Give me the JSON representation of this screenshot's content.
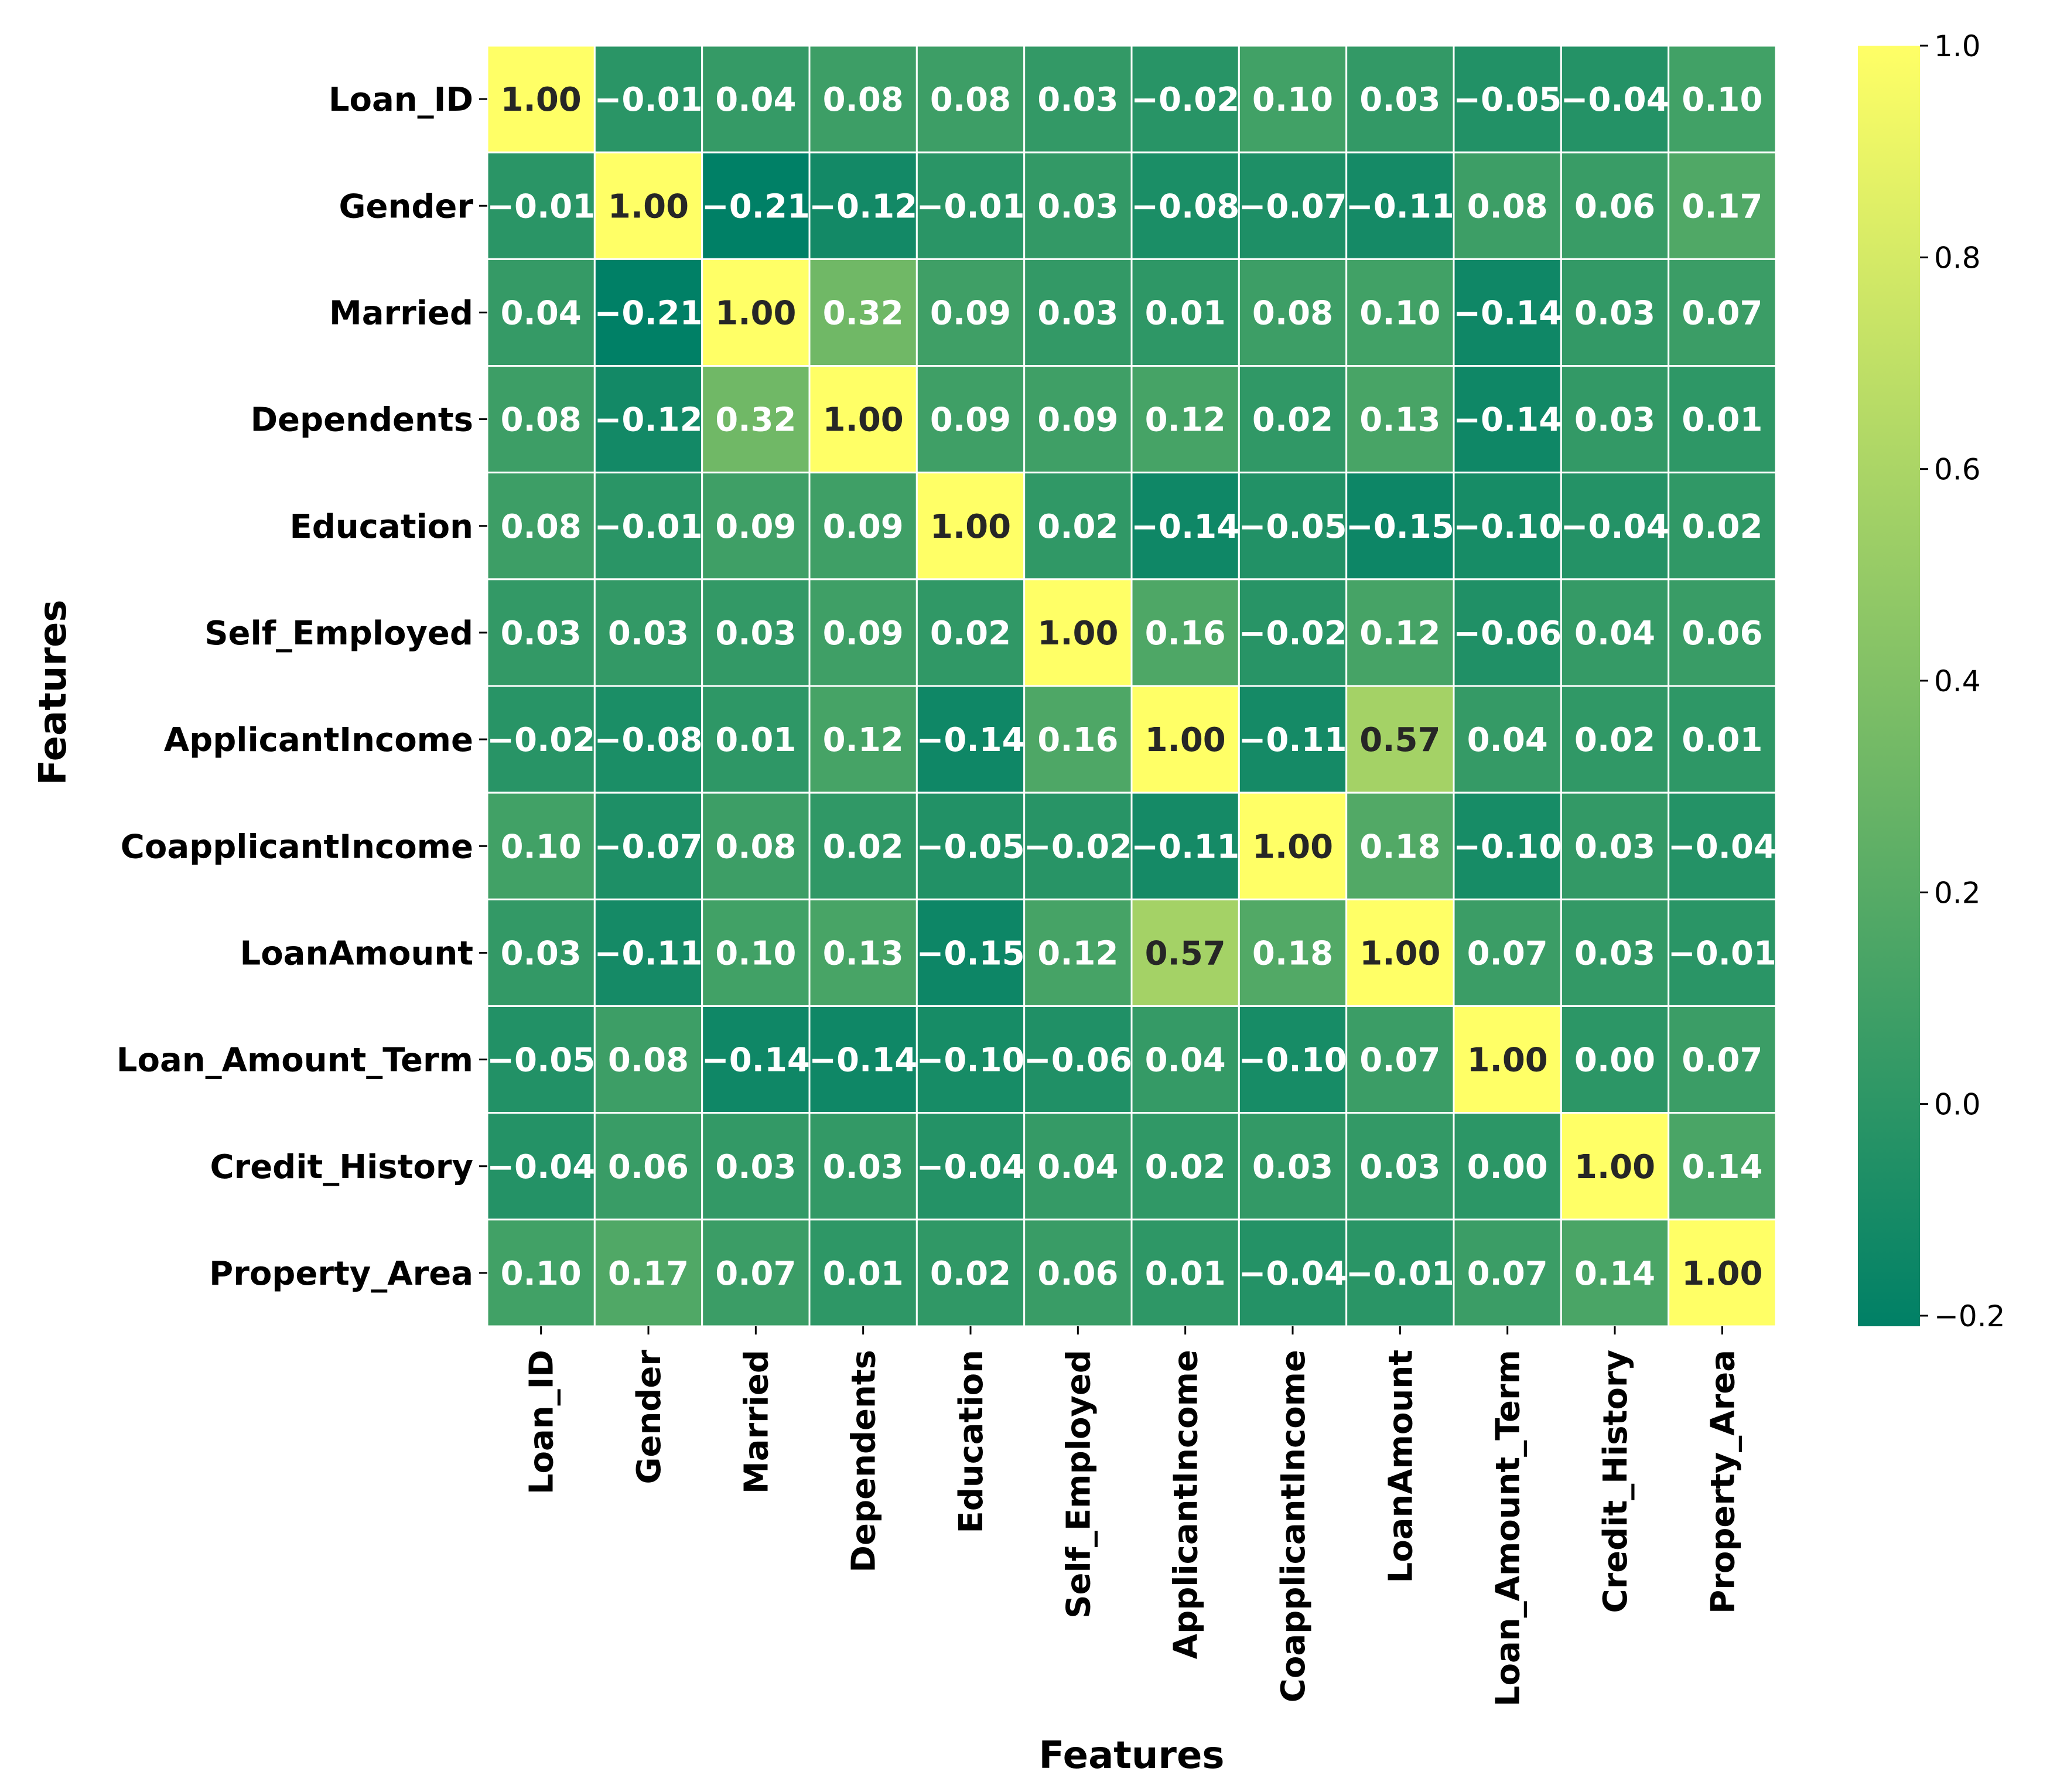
{
  "chart_data": {
    "type": "heatmap",
    "title": "",
    "xlabel": "Features",
    "ylabel": "Features",
    "rows": [
      "Loan_ID",
      "Gender",
      "Married",
      "Dependents",
      "Education",
      "Self_Employed",
      "ApplicantIncome",
      "CoapplicantIncome",
      "LoanAmount",
      "Loan_Amount_Term",
      "Credit_History",
      "Property_Area"
    ],
    "columns": [
      "Loan_ID",
      "Gender",
      "Married",
      "Dependents",
      "Education",
      "Self_Employed",
      "ApplicantIncome",
      "CoapplicantIncome",
      "LoanAmount",
      "Loan_Amount_Term",
      "Credit_History",
      "Property_Area"
    ],
    "values": [
      [
        1.0,
        -0.01,
        0.04,
        0.08,
        0.08,
        0.03,
        -0.02,
        0.1,
        0.03,
        -0.05,
        -0.04,
        0.1
      ],
      [
        -0.01,
        1.0,
        -0.21,
        -0.12,
        -0.01,
        0.03,
        -0.08,
        -0.07,
        -0.11,
        0.08,
        0.06,
        0.17
      ],
      [
        0.04,
        -0.21,
        1.0,
        0.32,
        0.09,
        0.03,
        0.01,
        0.08,
        0.1,
        -0.14,
        0.03,
        0.07
      ],
      [
        0.08,
        -0.12,
        0.32,
        1.0,
        0.09,
        0.09,
        0.12,
        0.02,
        0.13,
        -0.14,
        0.03,
        0.01
      ],
      [
        0.08,
        -0.01,
        0.09,
        0.09,
        1.0,
        0.02,
        -0.14,
        -0.05,
        -0.15,
        -0.1,
        -0.04,
        0.02
      ],
      [
        0.03,
        0.03,
        0.03,
        0.09,
        0.02,
        1.0,
        0.16,
        -0.02,
        0.12,
        -0.06,
        0.04,
        0.06
      ],
      [
        -0.02,
        -0.08,
        0.01,
        0.12,
        -0.14,
        0.16,
        1.0,
        -0.11,
        0.57,
        0.04,
        0.02,
        0.01
      ],
      [
        0.1,
        -0.07,
        0.08,
        0.02,
        -0.05,
        -0.02,
        -0.11,
        1.0,
        0.18,
        -0.1,
        0.03,
        -0.04
      ],
      [
        0.03,
        -0.11,
        0.1,
        0.13,
        -0.15,
        0.12,
        0.57,
        0.18,
        1.0,
        0.07,
        0.03,
        -0.01
      ],
      [
        -0.05,
        0.08,
        -0.14,
        -0.14,
        -0.1,
        -0.06,
        0.04,
        -0.1,
        0.07,
        1.0,
        0.0,
        0.07
      ],
      [
        -0.04,
        0.06,
        0.03,
        0.03,
        -0.04,
        0.04,
        0.02,
        0.03,
        0.03,
        0.0,
        1.0,
        0.14
      ],
      [
        0.1,
        0.17,
        0.07,
        0.01,
        0.02,
        0.06,
        0.01,
        -0.04,
        -0.01,
        0.07,
        0.14,
        1.0
      ]
    ],
    "value_format": "2 decimals, unicode minus",
    "colormap": "summer",
    "colormap_stops": [
      "#008066",
      "#ffff66"
    ],
    "vmin": -0.21,
    "vmax": 1.0,
    "colorbar": {
      "ticks": [
        1.0,
        0.8,
        0.6,
        0.4,
        0.2,
        0.0,
        -0.2
      ],
      "tick_labels": [
        "1.0",
        "0.8",
        "0.6",
        "0.4",
        "0.2",
        "0.0",
        "−0.2"
      ]
    },
    "grid": true,
    "grid_color": "#ffffff",
    "annotation_colors": {
      "dark": "#262626",
      "light": "#ffffff"
    }
  }
}
